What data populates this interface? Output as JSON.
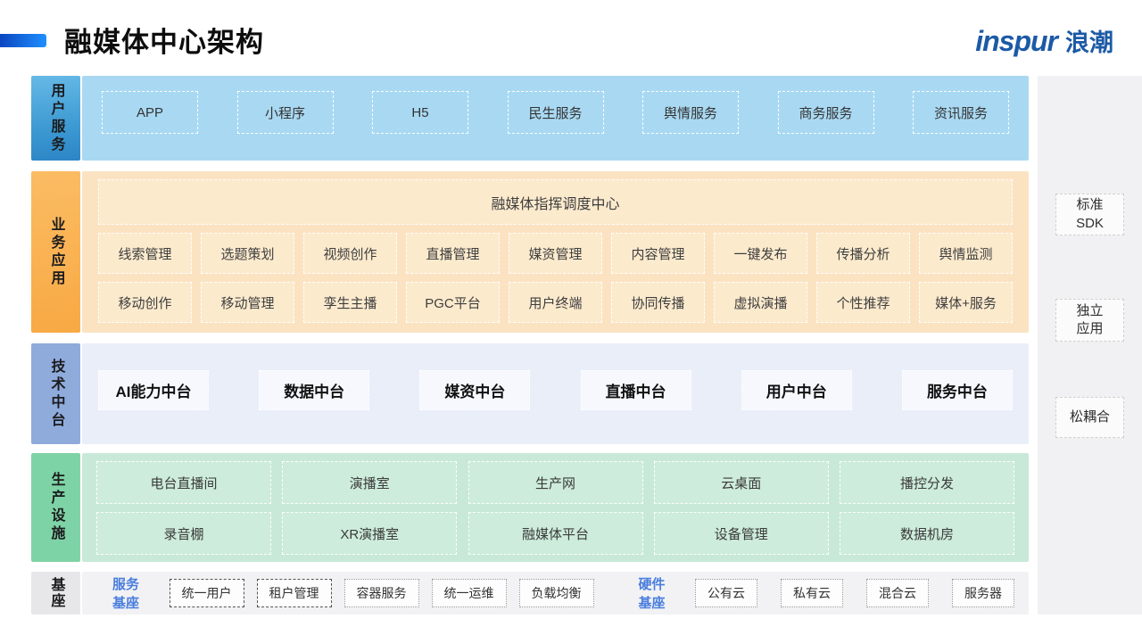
{
  "header": {
    "title": "融媒体中心架构",
    "logo_en": "inspur",
    "logo_cn": "浪潮"
  },
  "sections": {
    "user": {
      "label": "用户服务",
      "items": [
        "APP",
        "小程序",
        "H5",
        "民生服务",
        "舆情服务",
        "商务服务",
        "资讯服务"
      ]
    },
    "business": {
      "label": "业务应用",
      "banner": "融媒体指挥调度中心",
      "row1": [
        "线索管理",
        "选题策划",
        "视频创作",
        "直播管理",
        "媒资管理",
        "内容管理",
        "一键发布",
        "传播分析",
        "舆情监测"
      ],
      "row2": [
        "移动创作",
        "移动管理",
        "孪生主播",
        "PGC平台",
        "用户终端",
        "协同传播",
        "虚拟演播",
        "个性推荐",
        "媒体+服务"
      ]
    },
    "tech": {
      "label": "技术中台",
      "items": [
        "AI能力中台",
        "数据中台",
        "媒资中台",
        "直播中台",
        "用户中台",
        "服务中台"
      ]
    },
    "production": {
      "label": "生产设施",
      "row1": [
        "电台直播间",
        "演播室",
        "生产网",
        "云桌面",
        "播控分发"
      ],
      "row2": [
        "录音棚",
        "XR演播室",
        "融媒体平台",
        "设备管理",
        "数据机房"
      ]
    },
    "base": {
      "label": "基座",
      "service_title": "服务基座",
      "service_items": [
        "统一用户",
        "租户管理",
        "容器服务",
        "统一运维",
        "负载均衡"
      ],
      "hardware_title": "硬件基座",
      "hardware_items": [
        "公有云",
        "私有云",
        "混合云",
        "服务器"
      ]
    }
  },
  "sidebar": {
    "items": [
      {
        "line1": "标准",
        "line2": "SDK"
      },
      {
        "line1": "独立",
        "line2": "应用"
      },
      {
        "line1": "松耦合"
      }
    ]
  },
  "colors": {
    "accent_start": "#0b46c0",
    "accent_end": "#1f8fff",
    "logo_blue": "#1c5aa6",
    "user_label": "#3d9ad2",
    "user_bg": "#a9d9f2",
    "business_label": "#f9ae4c",
    "business_bg": "#fbe3c2",
    "tech_label": "#8fabdc",
    "tech_bg": "#e9eef9",
    "production_label": "#7ed3a6",
    "production_bg": "#c8e9d7",
    "base_label": "#e7e7e9",
    "base_bg": "#f2f2f4",
    "base_title_text": "#4a7edd"
  }
}
